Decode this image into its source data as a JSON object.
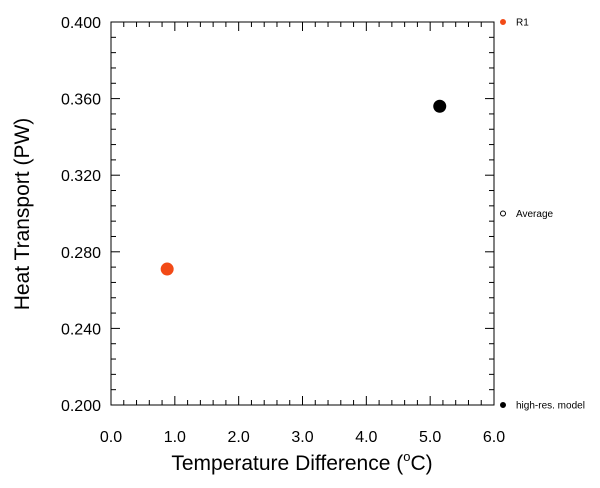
{
  "chart_data": {
    "type": "scatter",
    "title": "",
    "xlabel": "Temperature Difference (",
    "xlabel_unit_sup": "o",
    "xlabel_unit_rest": "C)",
    "ylabel": "Heat Transport (PW)",
    "xlim": [
      0.0,
      6.0
    ],
    "ylim": [
      0.2,
      0.4
    ],
    "x_ticks": [
      "0.0",
      "1.0",
      "2.0",
      "3.0",
      "4.0",
      "5.0",
      "6.0"
    ],
    "y_ticks": [
      "0.200",
      "0.240",
      "0.280",
      "0.320",
      "0.360",
      "0.400"
    ],
    "grid": false,
    "legend_position": "right",
    "series": [
      {
        "name": "R1",
        "color": "#f24a17",
        "marker": "filled-circle",
        "x": [
          0.88
        ],
        "y": [
          0.271
        ]
      },
      {
        "name": "Average",
        "color": "#000000",
        "marker": "open-circle",
        "x": [],
        "y": []
      },
      {
        "name": "high-res. model",
        "color": "#000000",
        "marker": "filled-circle",
        "x": [
          5.15
        ],
        "y": [
          0.356
        ]
      }
    ]
  }
}
